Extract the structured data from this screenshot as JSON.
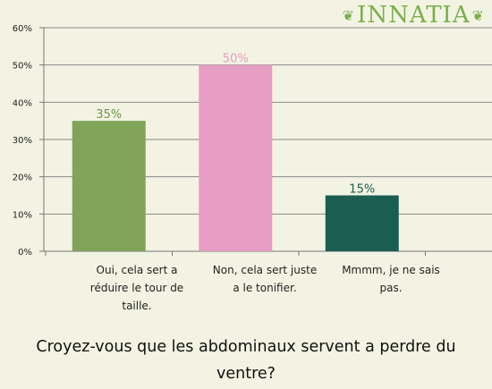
{
  "logo": {
    "text": "INNATIA"
  },
  "chart_data": {
    "type": "bar",
    "title": "Croyez-vous que les abdominaux servent a perdre du ventre?",
    "categories": [
      "Oui, cela sert a réduire le tour de taille.",
      "Non, cela sert juste a le tonifier.",
      "Mmmm, je ne sais pas."
    ],
    "values": [
      35,
      50,
      15
    ],
    "value_labels": [
      "35%",
      "50%",
      "15%"
    ],
    "bar_colors": [
      "#7fa45a",
      "#e79dc3",
      "#1a5e52"
    ],
    "value_label_colors": [
      "#6c9443",
      "#e79dc3",
      "#1a5e52"
    ],
    "ylim": [
      0,
      60
    ],
    "yticks": [
      "0%",
      "10%",
      "20%",
      "30%",
      "40%",
      "50%",
      "60%"
    ],
    "grid": true
  }
}
